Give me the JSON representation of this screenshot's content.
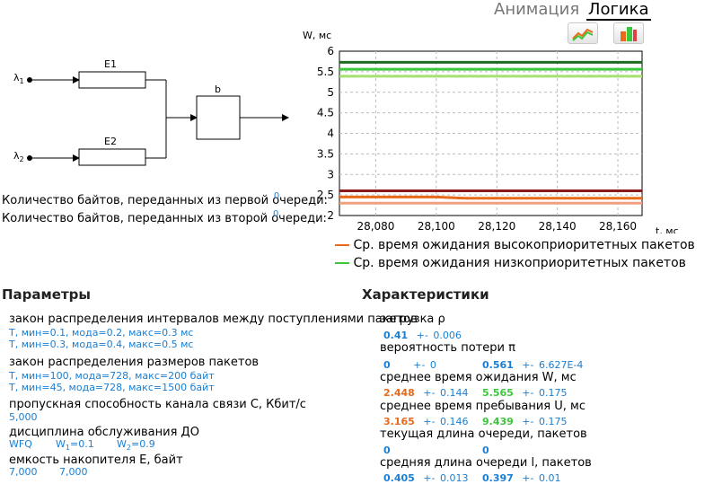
{
  "header": {
    "tab_animation": "Анимация",
    "tab_logic": "Логика"
  },
  "toolbar": {
    "line_chart_icon": "line-chart-icon",
    "bar_chart_icon": "bar-chart-icon"
  },
  "diagram": {
    "lambda1": "λ",
    "lambda1_sub": "1",
    "lambda2": "λ",
    "lambda2_sub": "2",
    "queue1": "E1",
    "queue2": "E2",
    "server": "b"
  },
  "bytes": {
    "first": "Количество байтов, переданных из первой очереди:",
    "second": "Количество байтов, переданных из второй очереди:",
    "first_value": "0",
    "second_value": "0"
  },
  "chart_data": {
    "type": "line",
    "title": "",
    "ylabel": "W, мс",
    "xlabel": "t, мс",
    "x": [
      28068,
      28080,
      28090,
      28100,
      28110,
      28120,
      28130,
      28140,
      28150,
      28160,
      28168
    ],
    "xticks": [
      "28,080",
      "28,100",
      "28,120",
      "28,140",
      "28,160"
    ],
    "xtick_values": [
      28080,
      28100,
      28120,
      28140,
      28160
    ],
    "yticks": [
      "2",
      "2.5",
      "3",
      "3.5",
      "4",
      "4.5",
      "5",
      "5.5",
      "6"
    ],
    "ylim": [
      2,
      6
    ],
    "xlim": [
      28068,
      28168
    ],
    "grid": true,
    "legend_position": "bottom-right",
    "series": [
      {
        "name": "Ср. время ожидания высокоприоритетных пакетов",
        "color": "#e86a1a",
        "values": [
          2.45,
          2.45,
          2.45,
          2.45,
          2.42,
          2.42,
          2.42,
          2.42,
          2.42,
          2.42,
          2.42
        ]
      },
      {
        "name": "",
        "color": "#8b1a1a",
        "values": [
          2.6,
          2.6,
          2.6,
          2.6,
          2.6,
          2.6,
          2.6,
          2.6,
          2.6,
          2.6,
          2.6
        ]
      },
      {
        "name": "",
        "color": "#f0a080",
        "values": [
          2.3,
          2.3,
          2.3,
          2.3,
          2.3,
          2.3,
          2.3,
          2.3,
          2.3,
          2.3,
          2.3
        ]
      },
      {
        "name": "Ср. время ожидания низкоприоритетных пакетов",
        "color": "#3cc63c",
        "values": [
          5.56,
          5.56,
          5.56,
          5.56,
          5.56,
          5.56,
          5.56,
          5.56,
          5.56,
          5.56,
          5.56
        ]
      },
      {
        "name": "",
        "color": "#1f6b1f",
        "values": [
          5.73,
          5.73,
          5.73,
          5.73,
          5.73,
          5.73,
          5.73,
          5.73,
          5.73,
          5.73,
          5.73
        ]
      },
      {
        "name": "",
        "color": "#a6e070",
        "values": [
          5.39,
          5.39,
          5.39,
          5.39,
          5.39,
          5.39,
          5.39,
          5.39,
          5.39,
          5.39,
          5.39
        ]
      }
    ]
  },
  "params": {
    "title": "Параметры",
    "arrival_label": "закон распределения интервалов между поступлениями пакетов",
    "arrival_1": "T, мин=0.1, мода=0.2, макс=0.3 мс",
    "arrival_2": "T, мин=0.3, мода=0.4, макс=0.5 мс",
    "size_label": "закон распределения размеров пакетов",
    "size_1": "T, мин=100, мода=728, макс=200 байт",
    "size_2": "T, мин=45, мода=728, макс=1500 байт",
    "bandwidth_label": "пропускная способность канала связи C, Кбит/с",
    "bandwidth_value": "5,000",
    "discipline_label": "дисциплина обслуживания ДО",
    "discipline_value": "WFQ",
    "w1_label": "W",
    "w1_sub": "1",
    "w1_value": "=0.1",
    "w2_label": "W",
    "w2_sub": "2",
    "w2_value": "=0.9",
    "buffer_label": "емкость накопителя E, байт",
    "buffer_1": "7,000",
    "buffer_2": "7,000"
  },
  "chars": {
    "title": "Характеристики",
    "load_label": "загрузка ρ",
    "load_value": "0.41",
    "load_err": "0.006",
    "loss_label": "вероятность потери π",
    "loss_1": "0",
    "loss_1_err": "0",
    "loss_2": "0.561",
    "loss_2_err": "6.627E-4",
    "wait_label": "среднее время ожидания W, мс",
    "wait_1": "2.448",
    "wait_1_err": "0.144",
    "wait_2": "5.565",
    "wait_2_err": "0.175",
    "stay_label": "среднее время пребывания U, мс",
    "stay_1": "3.165",
    "stay_1_err": "0.146",
    "stay_2": "9.439",
    "stay_2_err": "0.175",
    "qlen_label": "текущая длина очереди, пакетов",
    "qlen_1": "0",
    "qlen_2": "0",
    "avgq_label": "средняя длина очереди l, пакетов",
    "avgq_1": "0.405",
    "avgq_1_err": "0.013",
    "avgq_2": "0.397",
    "avgq_2_err": "0.01",
    "pm": "+-"
  },
  "colors": {
    "blue": "#1a7fd4",
    "orange": "#e86a1a",
    "green": "#3cc63c"
  }
}
